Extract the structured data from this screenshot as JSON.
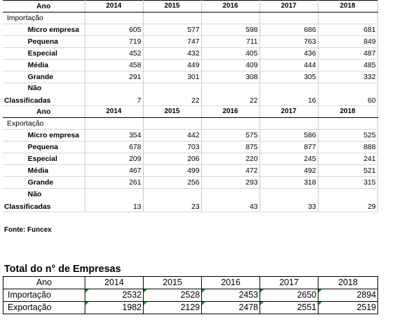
{
  "years": [
    "2014",
    "2015",
    "2016",
    "2017",
    "2018"
  ],
  "header_label": "Ano",
  "importacao": {
    "title": "Importação",
    "rows": [
      {
        "label": "Micro empresa",
        "values": [
          "605",
          "577",
          "598",
          "686",
          "681"
        ]
      },
      {
        "label": "Pequena",
        "values": [
          "719",
          "747",
          "711",
          "763",
          "849"
        ]
      },
      {
        "label": "Especial",
        "values": [
          "452",
          "432",
          "405",
          "436",
          "487"
        ]
      },
      {
        "label": "Média",
        "values": [
          "458",
          "449",
          "409",
          "444",
          "485"
        ]
      },
      {
        "label": "Grande",
        "values": [
          "291",
          "301",
          "308",
          "305",
          "332"
        ]
      }
    ],
    "nao_label_1": "Não",
    "nao_label_2": "Classificadas",
    "nao_values": [
      "7",
      "22",
      "22",
      "16",
      "60"
    ]
  },
  "exportacao": {
    "title": "Exportação",
    "rows": [
      {
        "label": "Micro empresa",
        "values": [
          "354",
          "442",
          "575",
          "586",
          "525"
        ]
      },
      {
        "label": "Pequena",
        "values": [
          "678",
          "703",
          "875",
          "877",
          "888"
        ]
      },
      {
        "label": "Especial",
        "values": [
          "209",
          "206",
          "220",
          "245",
          "241"
        ]
      },
      {
        "label": "Média",
        "values": [
          "467",
          "499",
          "472",
          "492",
          "521"
        ]
      },
      {
        "label": "Grande",
        "values": [
          "261",
          "256",
          "293",
          "318",
          "315"
        ]
      }
    ],
    "nao_label_1": "Não",
    "nao_label_2": "Classificadas",
    "nao_values": [
      "13",
      "23",
      "43",
      "33",
      "29"
    ]
  },
  "source": "Fonte: Funcex",
  "totals": {
    "title": "Total do n° de Empresas",
    "header_label": "Ano",
    "rows": [
      {
        "label": "Importação",
        "values": [
          "2532",
          "2528",
          "2453",
          "2650",
          "2894"
        ]
      },
      {
        "label": "Exportação",
        "values": [
          "1982",
          "2129",
          "2478",
          "2551",
          "2519"
        ]
      }
    ]
  },
  "colors": {
    "gridline": "#c8c8c8",
    "corner_marker": "#1e8a2e"
  }
}
